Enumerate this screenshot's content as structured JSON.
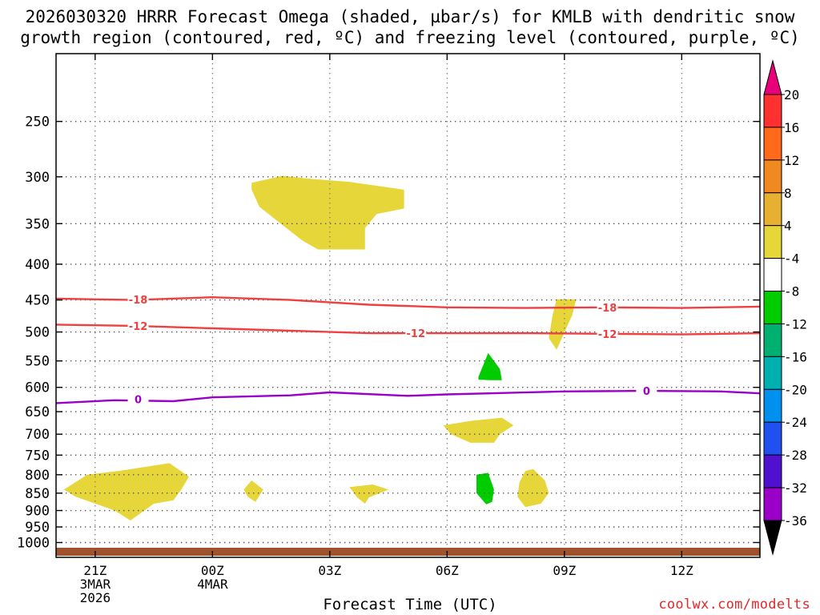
{
  "title_lines": [
    "2026030320 HRRR Forecast Omega (shaded, µbar/s) for KMLB with dendritic snow",
    "growth region (contoured, red, ºC) and freezing level (contoured, purple, ºC)"
  ],
  "x_axis_label": "Forecast Time (UTC)",
  "credit": "coolwx.com/modelts",
  "chart_data": {
    "type": "contour-timeheight",
    "x_units": "hours after 2026-03-03 20Z",
    "xlim": [
      0,
      18
    ],
    "x_ticks": [
      {
        "x": 1,
        "lines": [
          "21Z",
          "3MAR",
          "2026"
        ]
      },
      {
        "x": 4,
        "lines": [
          "00Z",
          "4MAR"
        ]
      },
      {
        "x": 7,
        "lines": [
          "03Z"
        ]
      },
      {
        "x": 10,
        "lines": [
          "06Z"
        ]
      },
      {
        "x": 13,
        "lines": [
          "09Z"
        ]
      },
      {
        "x": 16,
        "lines": [
          "12Z"
        ]
      }
    ],
    "ylabel": "",
    "y_scale": "log-pressure-reversed",
    "ylim": [
      1050,
      200
    ],
    "y_ticks": [
      250,
      300,
      350,
      400,
      450,
      500,
      550,
      600,
      650,
      700,
      750,
      800,
      850,
      900,
      950,
      1000
    ],
    "grid": true,
    "colorbar": {
      "ticks": [
        "20",
        "16",
        "12",
        "8",
        "4",
        "-4",
        "-8",
        "-12",
        "-16",
        "-20",
        "-24",
        "-28",
        "-32",
        "-36"
      ],
      "colors": [
        "#e8007a",
        "#ff3030",
        "#ff6a1a",
        "#f08a20",
        "#e8b030",
        "#e6d63a",
        "#ffffff",
        "#00cc00",
        "#00b070",
        "#00b0b0",
        "#0090f0",
        "#2050f0",
        "#5010d0",
        "#9a00c8",
        "#a0a0a0",
        "#000000"
      ]
    },
    "contours": [
      {
        "name": "-18",
        "color": "#ee4040",
        "label_positions": [
          {
            "x": 2.1,
            "p": 449
          },
          {
            "x": 14.1,
            "p": 461
          }
        ],
        "points": [
          [
            0,
            448
          ],
          [
            2,
            450
          ],
          [
            4,
            446
          ],
          [
            6,
            450
          ],
          [
            8,
            457
          ],
          [
            10,
            461
          ],
          [
            12,
            462
          ],
          [
            14,
            461
          ],
          [
            16,
            462
          ],
          [
            18,
            460
          ]
        ]
      },
      {
        "name": "-12",
        "color": "#ee4040",
        "label_positions": [
          {
            "x": 2.1,
            "p": 490
          },
          {
            "x": 9.2,
            "p": 502
          },
          {
            "x": 14.1,
            "p": 503
          }
        ],
        "points": [
          [
            0,
            488
          ],
          [
            2,
            490
          ],
          [
            4,
            494
          ],
          [
            6,
            498
          ],
          [
            8,
            502
          ],
          [
            10,
            502
          ],
          [
            12,
            502
          ],
          [
            14,
            503
          ],
          [
            16,
            504
          ],
          [
            18,
            502
          ]
        ]
      },
      {
        "name": "0",
        "color": "#9a00c8",
        "label_positions": [
          {
            "x": 2.1,
            "p": 624
          },
          {
            "x": 15.1,
            "p": 607
          }
        ],
        "points": [
          [
            0,
            632
          ],
          [
            1.5,
            626
          ],
          [
            3,
            628
          ],
          [
            4,
            620
          ],
          [
            6,
            616
          ],
          [
            7,
            610
          ],
          [
            9,
            617
          ],
          [
            10,
            614
          ],
          [
            13,
            608
          ],
          [
            15,
            607
          ],
          [
            17,
            608
          ],
          [
            18,
            612
          ]
        ]
      }
    ],
    "omega_regions": [
      {
        "value_range": [
          4,
          8
        ],
        "color": "#e6d63a",
        "points": [
          [
            5.0,
            306
          ],
          [
            5.8,
            299
          ],
          [
            6.5,
            302
          ],
          [
            7.5,
            305
          ],
          [
            8.9,
            313
          ],
          [
            8.9,
            333
          ],
          [
            8.2,
            339
          ],
          [
            7.9,
            355
          ],
          [
            7.9,
            381
          ],
          [
            6.7,
            381
          ],
          [
            6.3,
            370
          ],
          [
            5.8,
            352
          ],
          [
            5.2,
            331
          ],
          [
            5.0,
            313
          ]
        ]
      },
      {
        "value_range": [
          4,
          8
        ],
        "color": "#e6d63a",
        "points": [
          [
            12.8,
            449
          ],
          [
            13.3,
            449
          ],
          [
            13.2,
            473
          ],
          [
            12.8,
            530
          ],
          [
            12.6,
            510
          ],
          [
            12.7,
            472
          ]
        ]
      },
      {
        "value_range": [
          -8,
          -4
        ],
        "color": "#00cc00",
        "points": [
          [
            10.8,
            580
          ],
          [
            11.05,
            536
          ],
          [
            11.35,
            565
          ],
          [
            11.4,
            586
          ],
          [
            11.1,
            586
          ],
          [
            10.8,
            585
          ]
        ]
      },
      {
        "value_range": [
          4,
          8
        ],
        "color": "#e6d63a",
        "points": [
          [
            9.9,
            680
          ],
          [
            10.6,
            670
          ],
          [
            11.4,
            663
          ],
          [
            11.7,
            680
          ],
          [
            11.35,
            700
          ],
          [
            11.2,
            720
          ],
          [
            10.6,
            720
          ],
          [
            10.1,
            700
          ]
        ]
      },
      {
        "value_range": [
          4,
          8
        ],
        "color": "#e6d63a",
        "points": [
          [
            0.2,
            840
          ],
          [
            0.8,
            800
          ],
          [
            1.6,
            790
          ],
          [
            2.9,
            770
          ],
          [
            3.4,
            805
          ],
          [
            3.2,
            840
          ],
          [
            3.0,
            870
          ],
          [
            2.5,
            880
          ],
          [
            1.9,
            930
          ],
          [
            1.5,
            900
          ],
          [
            0.5,
            860
          ]
        ]
      },
      {
        "value_range": [
          4,
          8
        ],
        "color": "#e6d63a",
        "points": [
          [
            4.8,
            840
          ],
          [
            5.0,
            815
          ],
          [
            5.3,
            840
          ],
          [
            5.1,
            875
          ],
          [
            4.9,
            860
          ]
        ]
      },
      {
        "value_range": [
          4,
          8
        ],
        "color": "#e6d63a",
        "points": [
          [
            7.5,
            833
          ],
          [
            8.1,
            826
          ],
          [
            8.5,
            840
          ],
          [
            8.0,
            862
          ],
          [
            7.9,
            880
          ],
          [
            7.7,
            862
          ]
        ]
      },
      {
        "value_range": [
          -8,
          -4
        ],
        "color": "#00cc00",
        "points": [
          [
            10.75,
            800
          ],
          [
            11.05,
            795
          ],
          [
            11.2,
            840
          ],
          [
            11.15,
            875
          ],
          [
            11.0,
            882
          ],
          [
            10.75,
            850
          ]
        ]
      },
      {
        "value_range": [
          4,
          8
        ],
        "color": "#e6d63a",
        "points": [
          [
            12.0,
            790
          ],
          [
            12.2,
            785
          ],
          [
            12.5,
            815
          ],
          [
            12.6,
            850
          ],
          [
            12.4,
            880
          ],
          [
            12.0,
            890
          ],
          [
            11.8,
            860
          ],
          [
            11.85,
            820
          ]
        ]
      }
    ],
    "surface_band_color": "#a0522d"
  }
}
